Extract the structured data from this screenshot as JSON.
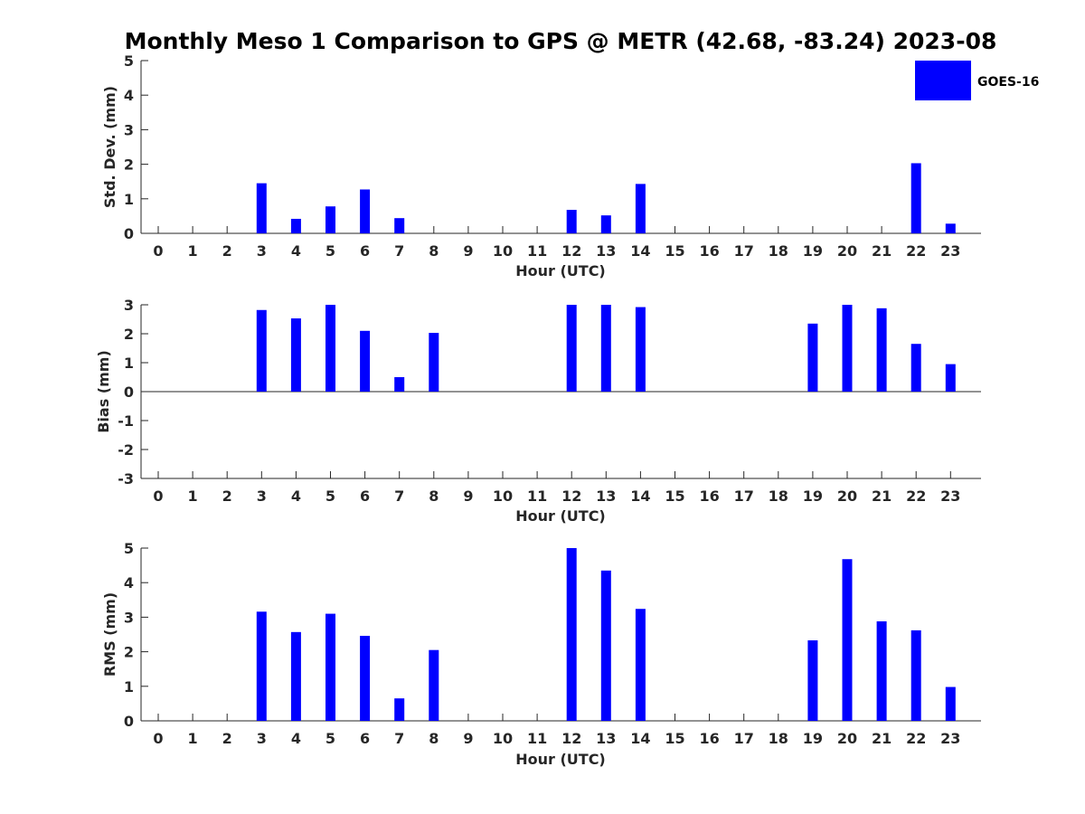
{
  "figure_title": "Monthly Meso 1 Comparison to GPS @ METR (42.68, -83.24) 2023-08",
  "legend": {
    "label": "GOES-16",
    "color": "#0000ff",
    "placement": "top-right"
  },
  "chart_data": [
    {
      "type": "bar",
      "xlabel": "Hour (UTC)",
      "ylabel": "Std. Dev. (mm)",
      "ylim": [
        0,
        5
      ],
      "yticks": [
        0,
        1,
        2,
        3,
        4,
        5
      ],
      "categories": [
        "0",
        "1",
        "2",
        "3",
        "4",
        "5",
        "6",
        "7",
        "8",
        "9",
        "10",
        "11",
        "12",
        "13",
        "14",
        "15",
        "16",
        "17",
        "18",
        "19",
        "20",
        "21",
        "22",
        "23"
      ],
      "series": [
        {
          "name": "GOES-16",
          "color": "#0000ff",
          "values": [
            null,
            null,
            null,
            1.45,
            0.42,
            0.78,
            1.27,
            0.44,
            null,
            null,
            null,
            null,
            0.68,
            0.52,
            1.43,
            null,
            null,
            null,
            null,
            null,
            null,
            null,
            2.03,
            0.28
          ]
        }
      ]
    },
    {
      "type": "bar",
      "xlabel": "Hour (UTC)",
      "ylabel": "Bias (mm)",
      "ylim": [
        -3,
        3
      ],
      "yticks": [
        -3,
        -2,
        -1,
        0,
        1,
        2,
        3
      ],
      "categories": [
        "0",
        "1",
        "2",
        "3",
        "4",
        "5",
        "6",
        "7",
        "8",
        "9",
        "10",
        "11",
        "12",
        "13",
        "14",
        "15",
        "16",
        "17",
        "18",
        "19",
        "20",
        "21",
        "22",
        "23"
      ],
      "series": [
        {
          "name": "GOES-16",
          "color": "#0000ff",
          "values": [
            null,
            null,
            null,
            2.82,
            2.53,
            3.0,
            2.1,
            0.5,
            2.03,
            null,
            null,
            null,
            3.0,
            3.0,
            2.92,
            null,
            null,
            null,
            null,
            2.35,
            3.0,
            2.88,
            1.65,
            0.95
          ]
        }
      ]
    },
    {
      "type": "bar",
      "xlabel": "Hour (UTC)",
      "ylabel": "RMS (mm)",
      "ylim": [
        0,
        5
      ],
      "yticks": [
        0,
        1,
        2,
        3,
        4,
        5
      ],
      "categories": [
        "0",
        "1",
        "2",
        "3",
        "4",
        "5",
        "6",
        "7",
        "8",
        "9",
        "10",
        "11",
        "12",
        "13",
        "14",
        "15",
        "16",
        "17",
        "18",
        "19",
        "20",
        "21",
        "22",
        "23"
      ],
      "series": [
        {
          "name": "GOES-16",
          "color": "#0000ff",
          "values": [
            null,
            null,
            null,
            3.16,
            2.57,
            3.1,
            2.46,
            0.65,
            2.05,
            null,
            null,
            null,
            5.0,
            4.35,
            3.24,
            null,
            null,
            null,
            null,
            2.33,
            4.68,
            2.88,
            2.62,
            0.98
          ]
        }
      ]
    }
  ]
}
